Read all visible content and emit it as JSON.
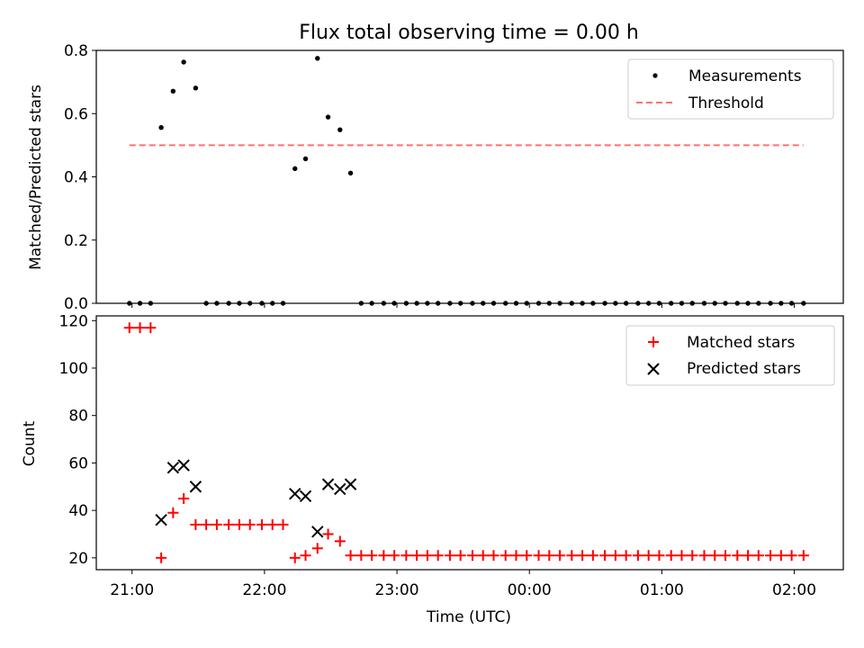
{
  "figure": {
    "title": "Flux total observing time = 0.00 h",
    "x_tick_labels": [
      "21:00",
      "22:00",
      "23:00",
      "00:00",
      "01:00",
      "02:00"
    ],
    "xlabel": "Time (UTC)"
  },
  "chart_data": [
    {
      "type": "scatter",
      "ylabel": "Matched/Predicted stars",
      "ylim": [
        0,
        0.8
      ],
      "y_ticks": [
        "0.0",
        "0.2",
        "0.4",
        "0.6",
        "0.8"
      ],
      "x_unit": "hours since 21:00 UTC",
      "xlim": [
        -0.27,
        5.37
      ],
      "legend": {
        "placement": "upper right",
        "entries": [
          "Measurements",
          "Threshold"
        ]
      },
      "series": [
        {
          "name": "Measurements",
          "marker": "dot",
          "color": "#000000",
          "points": [
            [
              -0.02,
              0
            ],
            [
              0.06,
              0
            ],
            [
              0.14,
              0
            ],
            [
              0.22,
              0.556
            ],
            [
              0.31,
              0.671
            ],
            [
              0.39,
              0.763
            ],
            [
              0.48,
              0.681
            ],
            [
              0.56,
              0
            ],
            [
              0.64,
              0
            ],
            [
              0.73,
              0
            ],
            [
              0.81,
              0
            ],
            [
              0.89,
              0
            ],
            [
              0.98,
              0
            ],
            [
              1.06,
              0
            ],
            [
              1.14,
              0
            ],
            [
              1.23,
              0.426
            ],
            [
              1.31,
              0.457
            ],
            [
              1.4,
              0.775
            ],
            [
              1.48,
              0.589
            ],
            [
              1.57,
              0.549
            ],
            [
              1.65,
              0.412
            ],
            [
              1.73,
              0
            ],
            [
              1.81,
              0
            ],
            [
              1.9,
              0
            ],
            [
              1.98,
              0
            ],
            [
              2.07,
              0
            ],
            [
              2.15,
              0
            ],
            [
              2.23,
              0
            ],
            [
              2.31,
              0
            ],
            [
              2.4,
              0
            ],
            [
              2.48,
              0
            ],
            [
              2.57,
              0
            ],
            [
              2.65,
              0
            ],
            [
              2.73,
              0
            ],
            [
              2.82,
              0
            ],
            [
              2.9,
              0
            ],
            [
              2.98,
              0
            ],
            [
              3.07,
              0
            ],
            [
              3.15,
              0
            ],
            [
              3.23,
              0
            ],
            [
              3.32,
              0
            ],
            [
              3.4,
              0
            ],
            [
              3.48,
              0
            ],
            [
              3.57,
              0
            ],
            [
              3.65,
              0
            ],
            [
              3.73,
              0
            ],
            [
              3.82,
              0
            ],
            [
              3.9,
              0
            ],
            [
              3.98,
              0
            ],
            [
              4.07,
              0
            ],
            [
              4.15,
              0
            ],
            [
              4.23,
              0
            ],
            [
              4.32,
              0
            ],
            [
              4.4,
              0
            ],
            [
              4.48,
              0
            ],
            [
              4.57,
              0
            ],
            [
              4.65,
              0
            ],
            [
              4.73,
              0
            ],
            [
              4.82,
              0
            ],
            [
              4.9,
              0
            ],
            [
              4.98,
              0
            ],
            [
              5.07,
              0
            ]
          ]
        },
        {
          "name": "Threshold",
          "style": "dashed",
          "color": "#ff7070",
          "x": [
            -0.02,
            5.07
          ],
          "y": [
            0.5,
            0.5
          ]
        }
      ]
    },
    {
      "type": "scatter",
      "ylabel": "Count",
      "xlabel": "Time (UTC)",
      "ylim": [
        15,
        122
      ],
      "y_ticks": [
        "20",
        "40",
        "60",
        "80",
        "100",
        "120"
      ],
      "x_unit": "hours since 21:00 UTC",
      "xlim": [
        -0.27,
        5.37
      ],
      "legend": {
        "placement": "upper right",
        "entries": [
          "Matched stars",
          "Predicted stars"
        ]
      },
      "series": [
        {
          "name": "Matched stars",
          "marker": "plus",
          "color": "#ff0000",
          "points": [
            [
              -0.02,
              117
            ],
            [
              0.06,
              117
            ],
            [
              0.14,
              117
            ],
            [
              0.22,
              20
            ],
            [
              0.31,
              39
            ],
            [
              0.39,
              45
            ],
            [
              0.48,
              34
            ],
            [
              0.56,
              34
            ],
            [
              0.64,
              34
            ],
            [
              0.73,
              34
            ],
            [
              0.81,
              34
            ],
            [
              0.89,
              34
            ],
            [
              0.98,
              34
            ],
            [
              1.06,
              34
            ],
            [
              1.14,
              34
            ],
            [
              1.23,
              20
            ],
            [
              1.31,
              21
            ],
            [
              1.4,
              24
            ],
            [
              1.48,
              30
            ],
            [
              1.57,
              27
            ],
            [
              1.65,
              21
            ],
            [
              1.73,
              21
            ],
            [
              1.81,
              21
            ],
            [
              1.9,
              21
            ],
            [
              1.98,
              21
            ],
            [
              2.07,
              21
            ],
            [
              2.15,
              21
            ],
            [
              2.23,
              21
            ],
            [
              2.31,
              21
            ],
            [
              2.4,
              21
            ],
            [
              2.48,
              21
            ],
            [
              2.57,
              21
            ],
            [
              2.65,
              21
            ],
            [
              2.73,
              21
            ],
            [
              2.82,
              21
            ],
            [
              2.9,
              21
            ],
            [
              2.98,
              21
            ],
            [
              3.07,
              21
            ],
            [
              3.15,
              21
            ],
            [
              3.23,
              21
            ],
            [
              3.32,
              21
            ],
            [
              3.4,
              21
            ],
            [
              3.48,
              21
            ],
            [
              3.57,
              21
            ],
            [
              3.65,
              21
            ],
            [
              3.73,
              21
            ],
            [
              3.82,
              21
            ],
            [
              3.9,
              21
            ],
            [
              3.98,
              21
            ],
            [
              4.07,
              21
            ],
            [
              4.15,
              21
            ],
            [
              4.23,
              21
            ],
            [
              4.32,
              21
            ],
            [
              4.4,
              21
            ],
            [
              4.48,
              21
            ],
            [
              4.57,
              21
            ],
            [
              4.65,
              21
            ],
            [
              4.73,
              21
            ],
            [
              4.82,
              21
            ],
            [
              4.9,
              21
            ],
            [
              4.98,
              21
            ],
            [
              5.07,
              21
            ]
          ]
        },
        {
          "name": "Predicted stars",
          "marker": "x",
          "color": "#000000",
          "points": [
            [
              0.22,
              36
            ],
            [
              0.31,
              58
            ],
            [
              0.39,
              59
            ],
            [
              0.48,
              50
            ],
            [
              1.23,
              47
            ],
            [
              1.31,
              46
            ],
            [
              1.4,
              31
            ],
            [
              1.48,
              51
            ],
            [
              1.57,
              49
            ],
            [
              1.65,
              51
            ]
          ]
        }
      ]
    }
  ]
}
